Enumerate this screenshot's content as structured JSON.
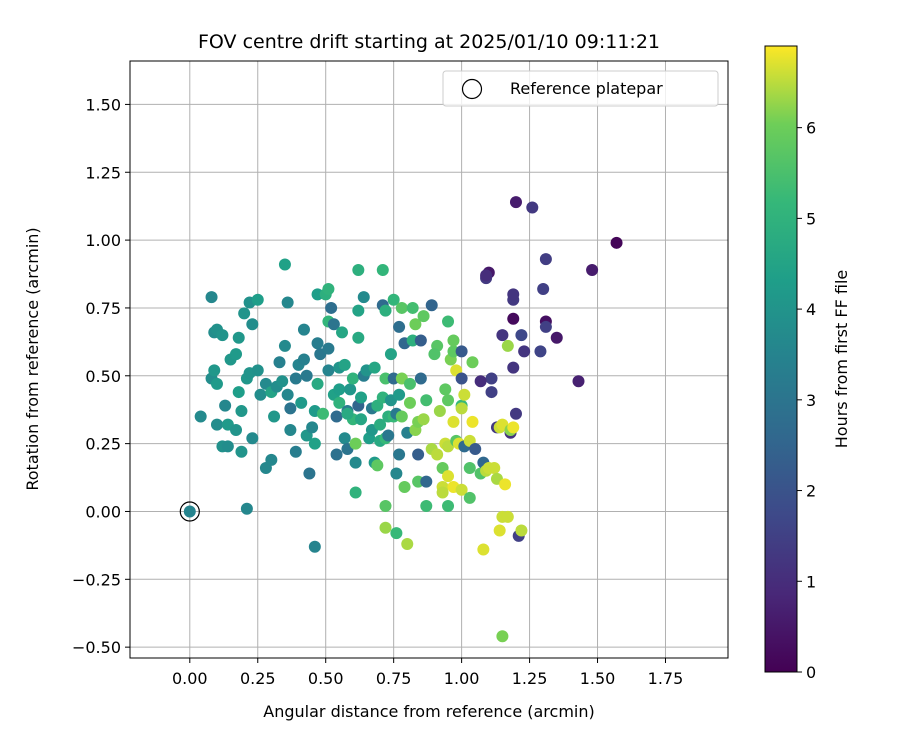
{
  "chart_data": {
    "type": "scatter",
    "title": "FOV centre drift starting at 2025/01/10 09:11:21",
    "xlabel": "Angular distance from reference (arcmin)",
    "ylabel": "Rotation from reference (arcmin)",
    "xlim": [
      -0.22,
      1.98
    ],
    "ylim": [
      -0.54,
      1.66
    ],
    "x_ticks": [
      "0.00",
      "0.25",
      "0.50",
      "0.75",
      "1.00",
      "1.25",
      "1.50",
      "1.75"
    ],
    "y_ticks": [
      "−0.50",
      "−0.25",
      "0.00",
      "0.25",
      "0.50",
      "0.75",
      "1.00",
      "1.25",
      "1.50"
    ],
    "grid": true,
    "legend": {
      "location": "upper right",
      "entries": [
        "Reference platepar"
      ]
    },
    "colorbar": {
      "label": "Hours from first FF file",
      "colormap": "viridis",
      "range": [
        0,
        6.9
      ],
      "ticks": [
        "0",
        "1",
        "2",
        "3",
        "4",
        "5",
        "6"
      ]
    },
    "reference_point": {
      "x": 0.0,
      "y": 0.0
    },
    "points": [
      [
        1.57,
        0.99,
        0.1
      ],
      [
        1.48,
        0.89,
        0.6
      ],
      [
        1.43,
        0.48,
        0.7
      ],
      [
        1.35,
        0.64,
        0.5
      ],
      [
        1.31,
        0.7,
        0.3
      ],
      [
        1.2,
        1.14,
        0.6
      ],
      [
        1.26,
        1.12,
        1.3
      ],
      [
        1.31,
        0.93,
        1.4
      ],
      [
        1.1,
        0.88,
        0.5
      ],
      [
        1.09,
        0.86,
        1.3
      ],
      [
        1.19,
        0.78,
        1.3
      ],
      [
        1.19,
        0.8,
        1.2
      ],
      [
        1.3,
        0.82,
        1.5
      ],
      [
        1.31,
        0.68,
        1.5
      ],
      [
        1.22,
        0.65,
        1.7
      ],
      [
        1.15,
        0.65,
        1.2
      ],
      [
        1.19,
        0.71,
        0.2
      ],
      [
        1.23,
        0.59,
        1.2
      ],
      [
        1.29,
        0.59,
        1.6
      ],
      [
        1.19,
        0.53,
        1.2
      ],
      [
        1.11,
        0.49,
        1.5
      ],
      [
        1.07,
        0.48,
        1.0
      ],
      [
        1.11,
        0.44,
        1.5
      ],
      [
        1.2,
        0.36,
        1.3
      ],
      [
        1.13,
        0.31,
        1.3
      ],
      [
        1.18,
        0.29,
        1.1
      ],
      [
        1.21,
        -0.09,
        1.5
      ],
      [
        0.0,
        0.0,
        3.5
      ],
      [
        0.08,
        0.79,
        3.6
      ],
      [
        0.09,
        0.66,
        3.8
      ],
      [
        0.1,
        0.67,
        3.9
      ],
      [
        0.12,
        0.65,
        4.0
      ],
      [
        0.15,
        0.56,
        4.1
      ],
      [
        0.17,
        0.58,
        4.2
      ],
      [
        0.18,
        0.64,
        4.1
      ],
      [
        0.2,
        0.73,
        4.0
      ],
      [
        0.22,
        0.77,
        3.9
      ],
      [
        0.23,
        0.69,
        3.8
      ],
      [
        0.25,
        0.78,
        4.3
      ],
      [
        0.35,
        0.91,
        4.4
      ],
      [
        0.36,
        0.77,
        3.6
      ],
      [
        0.08,
        0.49,
        3.8
      ],
      [
        0.09,
        0.52,
        4.1
      ],
      [
        0.1,
        0.47,
        4.2
      ],
      [
        0.04,
        0.35,
        3.7
      ],
      [
        0.1,
        0.32,
        3.8
      ],
      [
        0.13,
        0.39,
        3.6
      ],
      [
        0.14,
        0.32,
        4.2
      ],
      [
        0.17,
        0.3,
        4.0
      ],
      [
        0.18,
        0.44,
        4.3
      ],
      [
        0.19,
        0.37,
        4.1
      ],
      [
        0.19,
        0.22,
        4.0
      ],
      [
        0.12,
        0.24,
        3.9
      ],
      [
        0.14,
        0.24,
        3.8
      ],
      [
        0.21,
        0.49,
        4.1
      ],
      [
        0.22,
        0.51,
        4.0
      ],
      [
        0.23,
        0.27,
        3.7
      ],
      [
        0.21,
        0.01,
        3.6
      ],
      [
        0.25,
        0.52,
        3.9
      ],
      [
        0.26,
        0.43,
        3.8
      ],
      [
        0.28,
        0.47,
        3.7
      ],
      [
        0.28,
        0.16,
        3.6
      ],
      [
        0.3,
        0.44,
        4.5
      ],
      [
        0.3,
        0.19,
        3.6
      ],
      [
        0.31,
        0.35,
        4.1
      ],
      [
        0.32,
        0.46,
        3.8
      ],
      [
        0.33,
        0.55,
        3.4
      ],
      [
        0.34,
        0.48,
        3.9
      ],
      [
        0.35,
        0.61,
        3.7
      ],
      [
        0.36,
        0.43,
        3.6
      ],
      [
        0.37,
        0.38,
        3.0
      ],
      [
        0.37,
        0.3,
        3.6
      ],
      [
        0.39,
        0.49,
        3.2
      ],
      [
        0.39,
        0.22,
        3.3
      ],
      [
        0.4,
        0.54,
        3.5
      ],
      [
        0.41,
        0.4,
        4.2
      ],
      [
        0.42,
        0.56,
        3.4
      ],
      [
        0.42,
        0.67,
        3.5
      ],
      [
        0.43,
        0.5,
        3.2
      ],
      [
        0.43,
        0.28,
        4.1
      ],
      [
        0.44,
        0.14,
        3.0
      ],
      [
        0.45,
        0.31,
        3.6
      ],
      [
        0.46,
        0.37,
        4.2
      ],
      [
        0.46,
        0.25,
        4.4
      ],
      [
        0.47,
        0.47,
        4.7
      ],
      [
        0.47,
        0.62,
        3.3
      ],
      [
        0.46,
        -0.13,
        3.5
      ],
      [
        0.47,
        0.8,
        4.3
      ],
      [
        0.48,
        0.58,
        3.1
      ],
      [
        0.49,
        0.36,
        5.3
      ],
      [
        0.5,
        0.8,
        4.9
      ],
      [
        0.51,
        0.52,
        3.5
      ],
      [
        0.51,
        0.6,
        3.2
      ],
      [
        0.51,
        0.82,
        5.0
      ],
      [
        0.51,
        0.7,
        5.1
      ],
      [
        0.52,
        0.75,
        2.8
      ],
      [
        0.53,
        0.43,
        4.4
      ],
      [
        0.53,
        0.69,
        3.0
      ],
      [
        0.54,
        0.35,
        2.7
      ],
      [
        0.54,
        0.21,
        2.9
      ],
      [
        0.55,
        0.45,
        4.3
      ],
      [
        0.55,
        0.53,
        4.0
      ],
      [
        0.55,
        0.4,
        5.0
      ],
      [
        0.56,
        0.66,
        4.6
      ],
      [
        0.57,
        0.54,
        4.5
      ],
      [
        0.57,
        0.27,
        3.7
      ],
      [
        0.58,
        0.37,
        3.3
      ],
      [
        0.58,
        0.23,
        3.0
      ],
      [
        0.59,
        0.45,
        4.1
      ],
      [
        0.6,
        0.49,
        5.0
      ],
      [
        0.6,
        0.34,
        5.1
      ],
      [
        0.61,
        0.07,
        5.0
      ],
      [
        0.61,
        0.18,
        3.7
      ],
      [
        0.61,
        0.25,
        6.0
      ],
      [
        0.62,
        0.89,
        4.9
      ],
      [
        0.62,
        0.64,
        4.7
      ],
      [
        0.62,
        0.39,
        2.5
      ],
      [
        0.62,
        0.74,
        4.5
      ],
      [
        0.63,
        0.42,
        4.4
      ],
      [
        0.63,
        0.34,
        4.6
      ],
      [
        0.64,
        0.79,
        3.7
      ],
      [
        0.64,
        0.5,
        3.3
      ],
      [
        0.65,
        0.52,
        4.0
      ],
      [
        0.66,
        0.27,
        4.3
      ],
      [
        0.67,
        0.3,
        4.1
      ],
      [
        0.67,
        0.38,
        3.2
      ],
      [
        0.68,
        0.18,
        4.2
      ],
      [
        0.68,
        0.53,
        4.6
      ],
      [
        0.69,
        0.39,
        4.9
      ],
      [
        0.69,
        0.17,
        5.8
      ],
      [
        0.7,
        0.26,
        4.7
      ],
      [
        0.7,
        0.32,
        4.8
      ],
      [
        0.71,
        0.42,
        5.0
      ],
      [
        0.71,
        0.89,
        5.1
      ],
      [
        0.71,
        0.76,
        2.7
      ],
      [
        0.72,
        0.27,
        5.2
      ],
      [
        0.72,
        0.74,
        4.9
      ],
      [
        0.72,
        0.49,
        5.5
      ],
      [
        0.72,
        0.02,
        5.7
      ],
      [
        0.72,
        -0.06,
        6.3
      ],
      [
        0.73,
        0.28,
        3.1
      ],
      [
        0.73,
        0.35,
        4.9
      ],
      [
        0.74,
        0.41,
        4.0
      ],
      [
        0.74,
        0.58,
        4.5
      ],
      [
        0.75,
        0.78,
        5.1
      ],
      [
        0.75,
        0.35,
        5.2
      ],
      [
        0.75,
        0.49,
        2.7
      ],
      [
        0.76,
        0.36,
        3.2
      ],
      [
        0.76,
        0.14,
        3.6
      ],
      [
        0.76,
        -0.08,
        5.2
      ],
      [
        0.77,
        0.68,
        2.8
      ],
      [
        0.77,
        0.43,
        4.2
      ],
      [
        0.77,
        0.21,
        3.1
      ],
      [
        0.78,
        0.75,
        5.7
      ],
      [
        0.78,
        0.35,
        5.9
      ],
      [
        0.78,
        0.49,
        6.1
      ],
      [
        0.79,
        0.09,
        5.9
      ],
      [
        0.79,
        0.62,
        2.6
      ],
      [
        0.8,
        0.29,
        3.4
      ],
      [
        0.8,
        -0.12,
        6.4
      ],
      [
        0.81,
        0.47,
        5.5
      ],
      [
        0.81,
        0.4,
        6.0
      ],
      [
        0.82,
        0.63,
        4.9
      ],
      [
        0.82,
        0.75,
        5.4
      ],
      [
        0.83,
        0.3,
        6.2
      ],
      [
        0.83,
        0.69,
        6.0
      ],
      [
        0.84,
        0.11,
        5.7
      ],
      [
        0.84,
        0.21,
        2.3
      ],
      [
        0.84,
        0.33,
        6.1
      ],
      [
        0.85,
        0.63,
        2.3
      ],
      [
        0.85,
        0.49,
        2.7
      ],
      [
        0.86,
        0.34,
        6.3
      ],
      [
        0.86,
        0.72,
        5.8
      ],
      [
        0.87,
        0.41,
        5.4
      ],
      [
        0.87,
        0.11,
        2.6
      ],
      [
        0.87,
        0.02,
        5.3
      ],
      [
        0.89,
        0.76,
        2.5
      ],
      [
        0.89,
        0.23,
        6.4
      ],
      [
        0.91,
        0.61,
        5.7
      ],
      [
        0.91,
        0.21,
        6.5
      ],
      [
        0.92,
        0.37,
        6.3
      ],
      [
        0.93,
        0.09,
        6.6
      ],
      [
        0.93,
        0.07,
        6.5
      ],
      [
        0.93,
        0.16,
        5.9
      ],
      [
        0.94,
        0.45,
        5.8
      ],
      [
        0.94,
        0.25,
        6.6
      ],
      [
        0.95,
        0.13,
        6.7
      ],
      [
        0.95,
        0.41,
        5.8
      ],
      [
        0.95,
        0.24,
        6.5
      ],
      [
        0.95,
        0.02,
        5.3
      ],
      [
        0.95,
        0.7,
        5.3
      ],
      [
        0.96,
        0.56,
        6.1
      ],
      [
        0.97,
        0.59,
        5.8
      ],
      [
        0.97,
        0.33,
        6.7
      ],
      [
        0.97,
        0.09,
        6.8
      ],
      [
        0.97,
        0.63,
        5.9
      ],
      [
        0.98,
        0.52,
        6.7
      ],
      [
        0.98,
        0.26,
        5.7
      ],
      [
        0.99,
        0.25,
        6.7
      ],
      [
        1.0,
        0.49,
        2.0
      ],
      [
        1.0,
        0.59,
        2.2
      ],
      [
        1.0,
        0.08,
        6.6
      ],
      [
        1.0,
        0.39,
        5.2
      ],
      [
        1.01,
        0.43,
        6.6
      ],
      [
        1.01,
        0.24,
        2.7
      ],
      [
        1.03,
        0.05,
        5.6
      ],
      [
        1.03,
        0.26,
        6.6
      ],
      [
        1.03,
        0.16,
        5.6
      ],
      [
        1.04,
        0.55,
        6.0
      ],
      [
        1.04,
        0.33,
        6.8
      ],
      [
        1.05,
        0.23,
        2.2
      ],
      [
        1.07,
        0.14,
        5.6
      ],
      [
        1.08,
        0.18,
        2.6
      ],
      [
        1.08,
        -0.14,
        6.7
      ],
      [
        1.09,
        0.15,
        6.5
      ],
      [
        1.1,
        0.16,
        6.6
      ],
      [
        1.12,
        0.16,
        6.6
      ],
      [
        1.13,
        0.12,
        6.4
      ],
      [
        1.14,
        0.31,
        6.6
      ],
      [
        1.14,
        -0.07,
        6.7
      ],
      [
        1.15,
        0.32,
        6.7
      ],
      [
        1.15,
        -0.02,
        6.6
      ],
      [
        1.16,
        0.1,
        6.8
      ],
      [
        1.17,
        0.61,
        6.3
      ],
      [
        1.17,
        -0.02,
        6.6
      ],
      [
        1.18,
        0.3,
        6.2
      ],
      [
        1.19,
        0.31,
        6.8
      ],
      [
        1.22,
        -0.07,
        6.5
      ],
      [
        1.15,
        -0.46,
        6.1
      ],
      [
        1.09,
        0.87,
        1.0
      ],
      [
        1.0,
        0.38,
        6.5
      ],
      [
        0.9,
        0.58,
        5.6
      ],
      [
        0.58,
        0.36,
        4.7
      ]
    ]
  }
}
